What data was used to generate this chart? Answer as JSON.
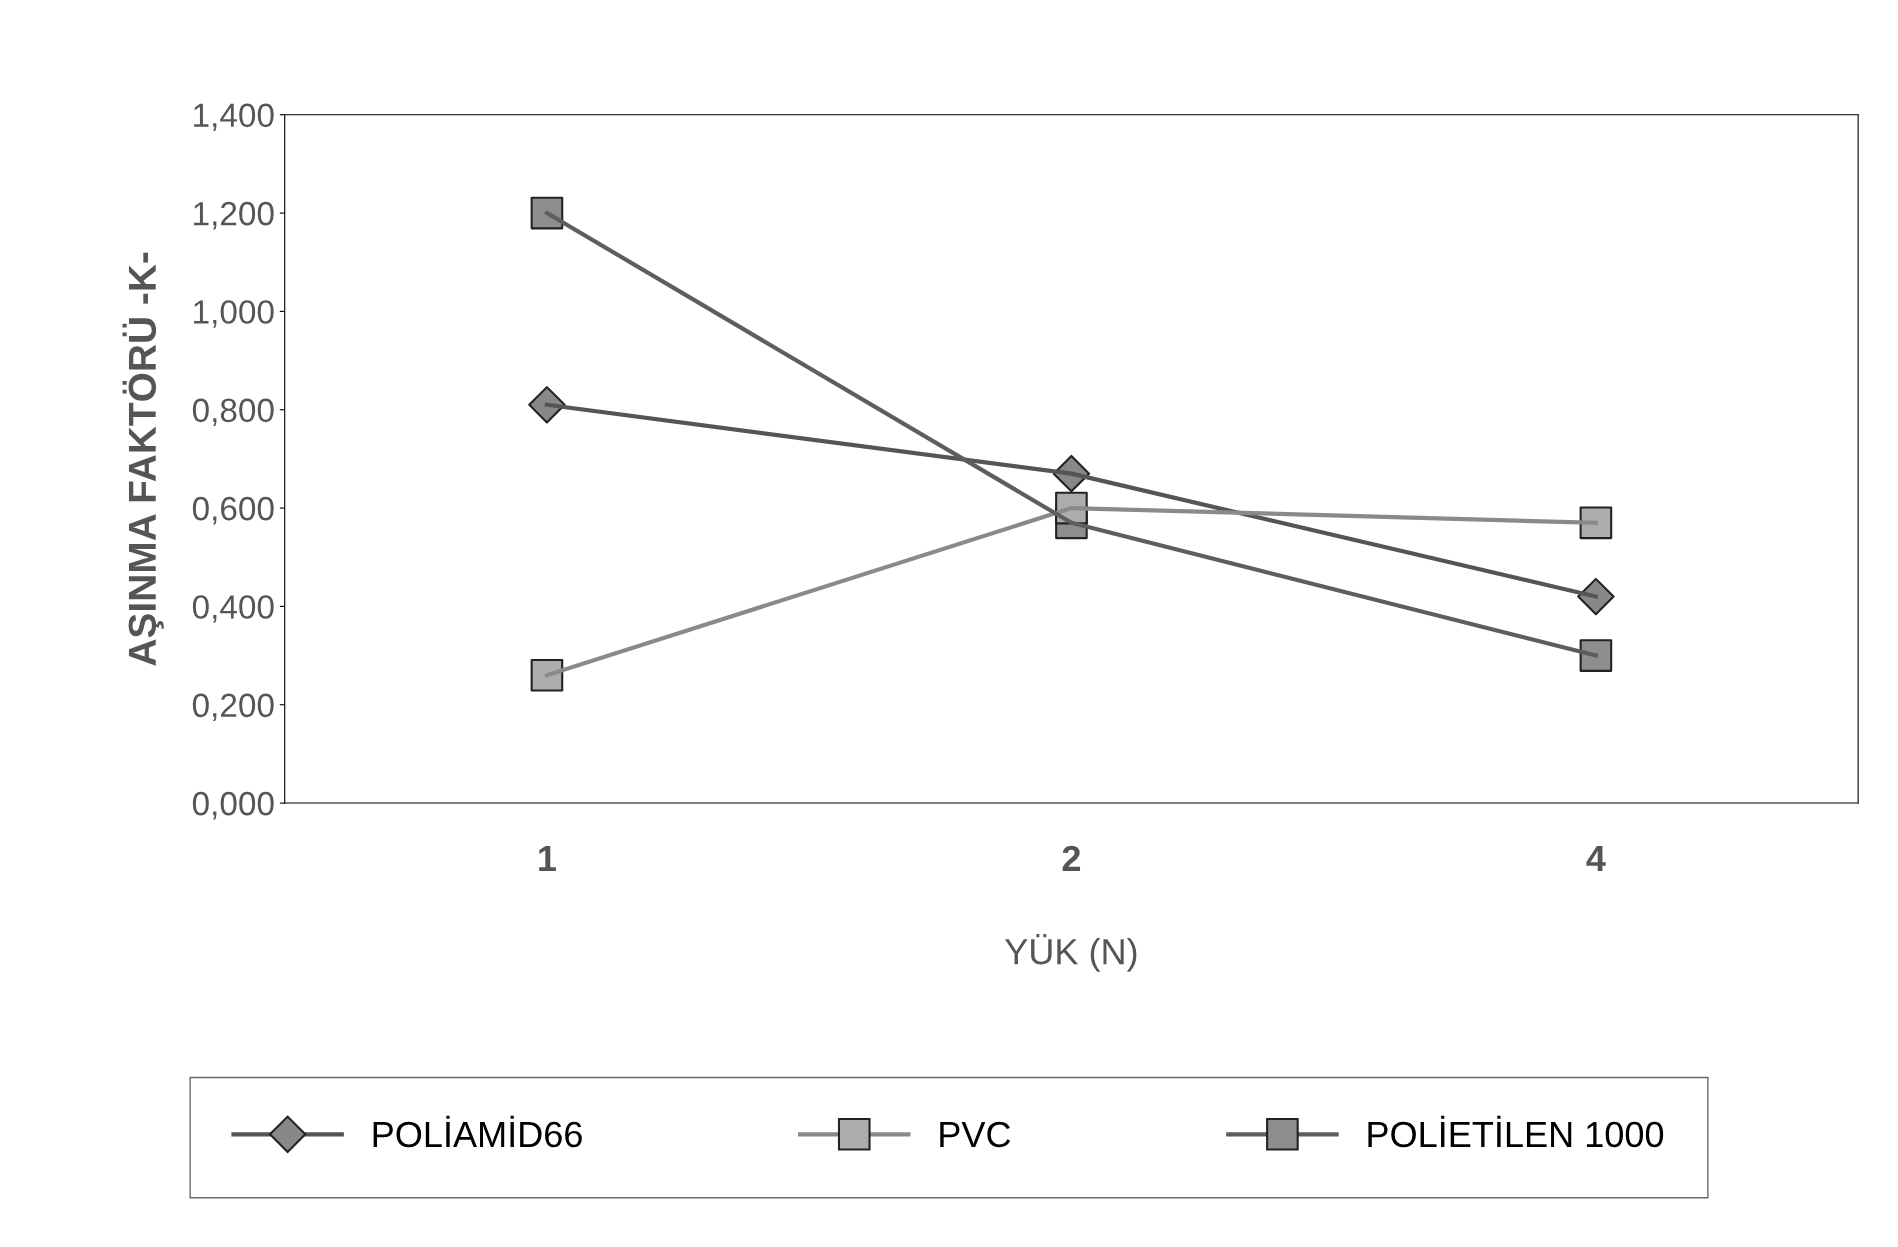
{
  "chart_data": {
    "type": "line",
    "xlabel": "YÜK (N)",
    "ylabel": "AŞINMA FAKTÖRÜ -K-",
    "categories": [
      "1",
      "2",
      "4"
    ],
    "series": [
      {
        "name": "POLİAMİD66",
        "color": "#555555",
        "values": [
          0.81,
          0.67,
          0.42
        ],
        "marker": "diamond"
      },
      {
        "name": "PVC",
        "color": "#8a8a8a",
        "values": [
          0.26,
          0.6,
          0.57
        ],
        "marker": "square"
      },
      {
        "name": "POLİETİLEN 1000",
        "color": "#5e5e5e",
        "values": [
          1.2,
          0.57,
          0.3
        ],
        "marker": "square"
      }
    ],
    "ylim": [
      0,
      1.4
    ],
    "yticks": [
      {
        "value": 0,
        "label": "0,000"
      },
      {
        "value": 0.2,
        "label": "0,200"
      },
      {
        "value": 0.4,
        "label": "0,400"
      },
      {
        "value": 0.6,
        "label": "0,600"
      },
      {
        "value": 0.8,
        "label": "0,800"
      },
      {
        "value": 1.0,
        "label": "1,000"
      },
      {
        "value": 1.2,
        "label": "1,200"
      },
      {
        "value": 1.4,
        "label": "1,400"
      }
    ],
    "grid": false,
    "legend": "bottom",
    "line_style": "solid"
  }
}
